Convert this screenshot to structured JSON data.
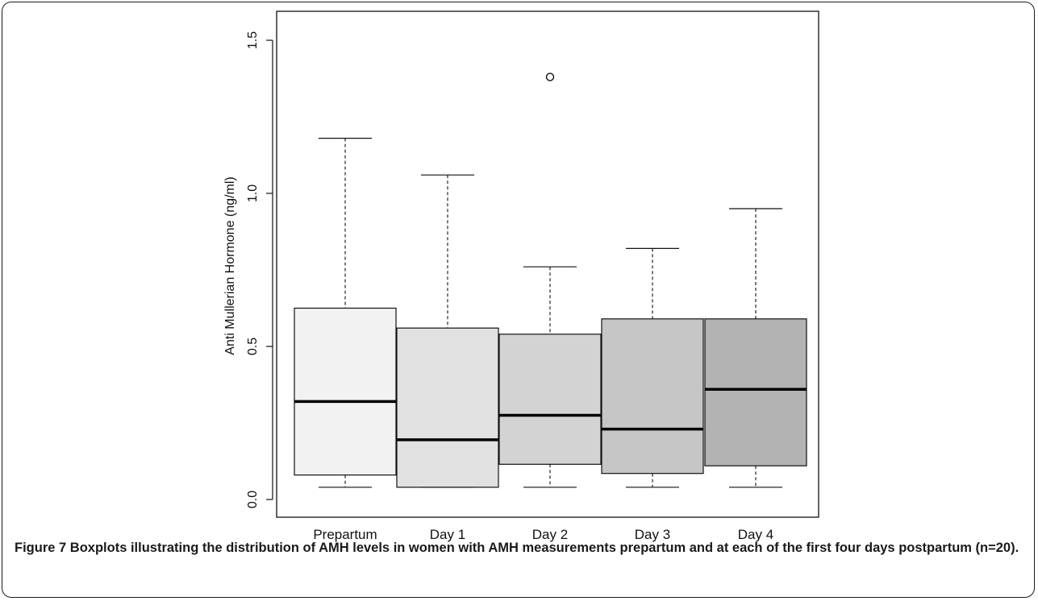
{
  "chart_data": {
    "type": "boxplot",
    "ylabel": "Anti Mullerian Hormone (ng/ml)",
    "ylim": [
      -0.03,
      1.55
    ],
    "yticks": [
      "0.0",
      "0.5",
      "1.0",
      "1.5"
    ],
    "categories": [
      "Prepartum",
      "Day 1",
      "Day 2",
      "Day 3",
      "Day 4"
    ],
    "boxes": [
      {
        "whisker_low": 0.04,
        "q1": 0.08,
        "median": 0.32,
        "q3": 0.625,
        "whisker_high": 1.18,
        "outliers": [],
        "fill": "#f2f2f2"
      },
      {
        "whisker_low": 0.04,
        "q1": 0.04,
        "median": 0.195,
        "q3": 0.56,
        "whisker_high": 1.06,
        "outliers": [],
        "fill": "#e1e1e1"
      },
      {
        "whisker_low": 0.04,
        "q1": 0.115,
        "median": 0.275,
        "q3": 0.54,
        "whisker_high": 0.76,
        "outliers": [
          1.38
        ],
        "fill": "#d3d3d3"
      },
      {
        "whisker_low": 0.04,
        "q1": 0.085,
        "median": 0.23,
        "q3": 0.59,
        "whisker_high": 0.82,
        "outliers": [],
        "fill": "#c6c6c6"
      },
      {
        "whisker_low": 0.04,
        "q1": 0.11,
        "median": 0.36,
        "q3": 0.59,
        "whisker_high": 0.95,
        "outliers": [],
        "fill": "#b3b3b3"
      }
    ],
    "grid": false,
    "legend": "none"
  },
  "caption": {
    "label": "Figure 7",
    "text": "Boxplots illustrating the distribution of AMH levels in women with AMH measurements prepartum and at each of the first four days postpartum (n=20)."
  }
}
